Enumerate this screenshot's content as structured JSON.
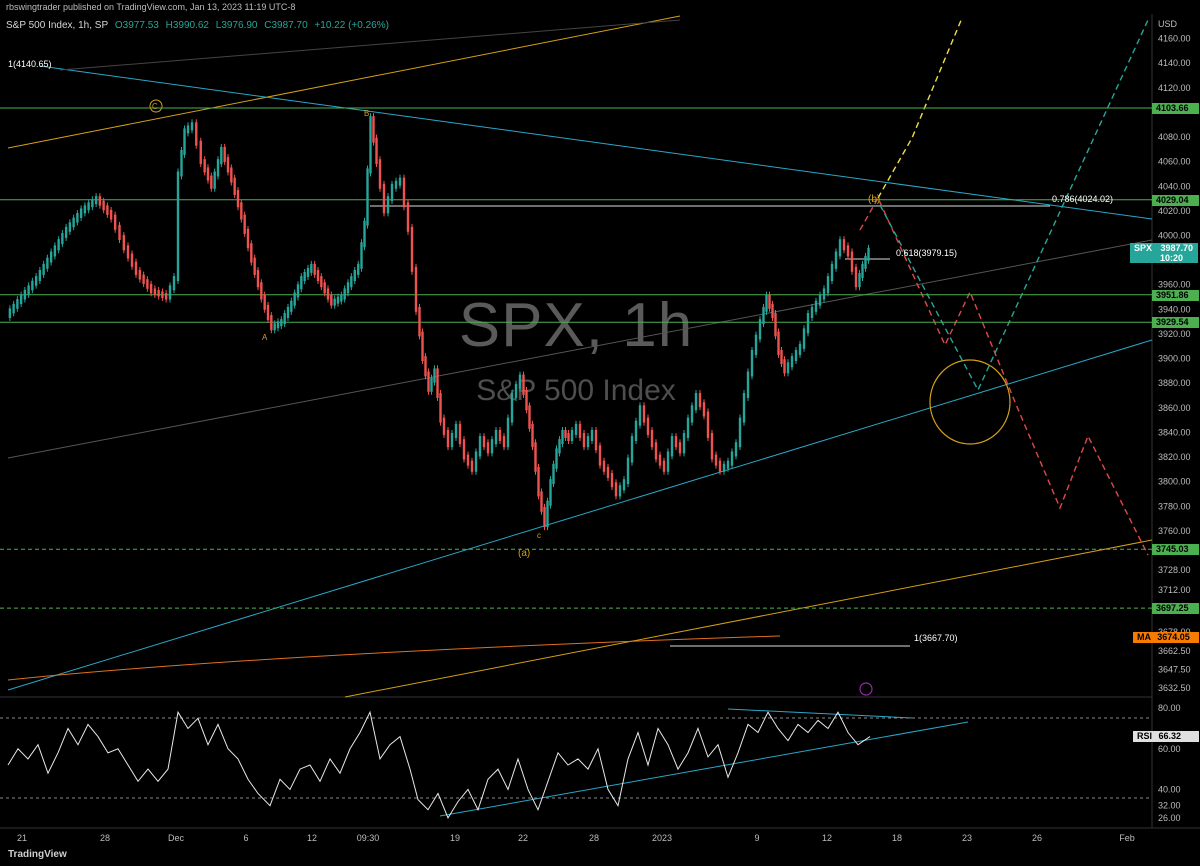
{
  "publisher": "rbswingtrader published on TradingView.com, Jan 13, 2023 11:19 UTC-8",
  "header": {
    "symbol": "S&P 500 Index, 1h, SP",
    "open": "O3977.53",
    "high": "H3990.62",
    "low": "L3976.90",
    "close": "C3987.70",
    "change": "+10.22 (+0.26%)"
  },
  "watermark": {
    "ticker": "SPX, 1h",
    "name": "S&P 500 Index"
  },
  "branding": "TradingView",
  "chart_data": [
    {
      "type": "line",
      "panel": "price",
      "title": "S&P 500 Index, 1h, SP",
      "currency": "USD",
      "ylim": [
        3625,
        4180
      ],
      "y_ticks": [
        "4160.00",
        "4140.00",
        "4120.00",
        "4080.00",
        "4060.00",
        "4040.00",
        "4020.00",
        "4000.00",
        "3960.00",
        "3940.00",
        "3920.00",
        "3900.00",
        "3880.00",
        "3860.00",
        "3840.00",
        "3820.00",
        "3800.00",
        "3780.00",
        "3760.00",
        "3728.00",
        "3712.00",
        "3678.00",
        "3662.50",
        "3647.50",
        "3632.50"
      ],
      "x_ticks": [
        "21",
        "28",
        "Dec",
        "6",
        "12",
        "09:30",
        "19",
        "22",
        "28",
        "2023",
        "9",
        "12",
        "18",
        "23",
        "26",
        "Feb"
      ],
      "price_series": {
        "name": "SPX",
        "points": [
          [
            0,
            3935
          ],
          [
            15,
            3950
          ],
          [
            30,
            3965
          ],
          [
            45,
            3985
          ],
          [
            60,
            4005
          ],
          [
            75,
            4020
          ],
          [
            90,
            4030
          ],
          [
            105,
            4015
          ],
          [
            118,
            3990
          ],
          [
            130,
            3970
          ],
          [
            145,
            3955
          ],
          [
            160,
            3950
          ],
          [
            168,
            3965
          ],
          [
            172,
            4050
          ],
          [
            178,
            4085
          ],
          [
            186,
            4090
          ],
          [
            195,
            4060
          ],
          [
            205,
            4040
          ],
          [
            215,
            4070
          ],
          [
            225,
            4045
          ],
          [
            235,
            4015
          ],
          [
            245,
            3980
          ],
          [
            255,
            3950
          ],
          [
            265,
            3925
          ],
          [
            275,
            3930
          ],
          [
            285,
            3945
          ],
          [
            295,
            3965
          ],
          [
            305,
            3975
          ],
          [
            315,
            3960
          ],
          [
            325,
            3945
          ],
          [
            335,
            3950
          ],
          [
            345,
            3965
          ],
          [
            352,
            3975
          ],
          [
            358,
            4010
          ],
          [
            364,
            4095
          ],
          [
            370,
            4060
          ],
          [
            378,
            4020
          ],
          [
            386,
            4040
          ],
          [
            394,
            4045
          ],
          [
            402,
            4005
          ],
          [
            410,
            3940
          ],
          [
            416,
            3900
          ],
          [
            422,
            3875
          ],
          [
            428,
            3890
          ],
          [
            434,
            3850
          ],
          [
            442,
            3830
          ],
          [
            450,
            3845
          ],
          [
            458,
            3820
          ],
          [
            466,
            3810
          ],
          [
            474,
            3835
          ],
          [
            482,
            3825
          ],
          [
            490,
            3840
          ],
          [
            498,
            3830
          ],
          [
            506,
            3870
          ],
          [
            514,
            3885
          ],
          [
            520,
            3860
          ],
          [
            526,
            3830
          ],
          [
            532,
            3790
          ],
          [
            538,
            3765
          ],
          [
            544,
            3800
          ],
          [
            550,
            3825
          ],
          [
            556,
            3840
          ],
          [
            562,
            3835
          ],
          [
            570,
            3845
          ],
          [
            578,
            3830
          ],
          [
            586,
            3840
          ],
          [
            594,
            3815
          ],
          [
            602,
            3805
          ],
          [
            610,
            3790
          ],
          [
            618,
            3800
          ],
          [
            626,
            3835
          ],
          [
            634,
            3860
          ],
          [
            642,
            3840
          ],
          [
            650,
            3820
          ],
          [
            658,
            3810
          ],
          [
            666,
            3835
          ],
          [
            674,
            3825
          ],
          [
            682,
            3850
          ],
          [
            690,
            3870
          ],
          [
            698,
            3855
          ],
          [
            706,
            3820
          ],
          [
            714,
            3810
          ],
          [
            722,
            3815
          ],
          [
            730,
            3830
          ],
          [
            738,
            3870
          ],
          [
            746,
            3905
          ],
          [
            754,
            3930
          ],
          [
            760,
            3950
          ],
          [
            766,
            3935
          ],
          [
            772,
            3905
          ],
          [
            778,
            3890
          ],
          [
            786,
            3900
          ],
          [
            794,
            3910
          ],
          [
            802,
            3935
          ],
          [
            810,
            3945
          ],
          [
            818,
            3955
          ],
          [
            826,
            3975
          ],
          [
            834,
            3995
          ],
          [
            842,
            3985
          ],
          [
            850,
            3960
          ],
          [
            856,
            3975
          ],
          [
            862,
            3988
          ]
        ]
      },
      "levels": [
        {
          "label": "4103.66",
          "value": 4103.66,
          "color": "#4caf50"
        },
        {
          "label": "4029.04",
          "value": 4029.04,
          "color": "#4caf50"
        },
        {
          "label": "3951.86",
          "value": 3951.86,
          "color": "#4caf50"
        },
        {
          "label": "3929.54",
          "value": 3929.54,
          "color": "#4caf50"
        },
        {
          "label": "3745.03",
          "value": 3745.03,
          "color": "#4caf50",
          "dashed": true
        },
        {
          "label": "3697.25",
          "value": 3697.25,
          "color": "#4caf50",
          "dashed": true
        }
      ],
      "last_price_badge": {
        "symbol": "SPX",
        "value": "3987.70",
        "timer": "10:20",
        "color": "#26a69a"
      },
      "ma_badge": {
        "symbol": "MA",
        "value": "3674.05",
        "color": "#f57c00"
      },
      "fib_labels": [
        {
          "text": "1(4140.65)",
          "value": 4140.65
        },
        {
          "text": "0.786(4024.02)",
          "value": 4024.02
        },
        {
          "text": "0.618(3979.15)",
          "value": 3979.15
        },
        {
          "text": "1(3667.70)",
          "value": 3667.7
        }
      ],
      "wave_labels": [
        "C",
        "B",
        "A",
        "c",
        "(a)",
        "(b)"
      ]
    },
    {
      "type": "line",
      "panel": "oscillator",
      "legend": "RSI",
      "last_value": "66.32",
      "ylim": [
        22,
        84
      ],
      "y_ticks": [
        "80.00",
        "60.00",
        "40.00",
        "32.00",
        "26.00"
      ],
      "series": {
        "name": "RSI",
        "points": [
          [
            0,
            52
          ],
          [
            10,
            60
          ],
          [
            20,
            55
          ],
          [
            30,
            62
          ],
          [
            40,
            48
          ],
          [
            50,
            58
          ],
          [
            60,
            70
          ],
          [
            70,
            62
          ],
          [
            80,
            72
          ],
          [
            90,
            66
          ],
          [
            100,
            58
          ],
          [
            110,
            60
          ],
          [
            120,
            52
          ],
          [
            130,
            44
          ],
          [
            140,
            50
          ],
          [
            150,
            44
          ],
          [
            160,
            50
          ],
          [
            170,
            78
          ],
          [
            180,
            70
          ],
          [
            190,
            75
          ],
          [
            200,
            62
          ],
          [
            210,
            72
          ],
          [
            220,
            60
          ],
          [
            230,
            55
          ],
          [
            240,
            45
          ],
          [
            250,
            38
          ],
          [
            262,
            32
          ],
          [
            272,
            45
          ],
          [
            282,
            40
          ],
          [
            292,
            50
          ],
          [
            302,
            52
          ],
          [
            312,
            44
          ],
          [
            322,
            55
          ],
          [
            332,
            48
          ],
          [
            342,
            60
          ],
          [
            352,
            68
          ],
          [
            362,
            78
          ],
          [
            372,
            55
          ],
          [
            382,
            62
          ],
          [
            392,
            66
          ],
          [
            402,
            50
          ],
          [
            410,
            35
          ],
          [
            420,
            30
          ],
          [
            430,
            38
          ],
          [
            440,
            26
          ],
          [
            450,
            34
          ],
          [
            460,
            40
          ],
          [
            470,
            30
          ],
          [
            480,
            45
          ],
          [
            490,
            50
          ],
          [
            500,
            40
          ],
          [
            510,
            55
          ],
          [
            520,
            40
          ],
          [
            530,
            30
          ],
          [
            540,
            44
          ],
          [
            550,
            58
          ],
          [
            560,
            52
          ],
          [
            570,
            55
          ],
          [
            580,
            50
          ],
          [
            590,
            60
          ],
          [
            600,
            40
          ],
          [
            610,
            32
          ],
          [
            620,
            55
          ],
          [
            630,
            68
          ],
          [
            640,
            52
          ],
          [
            650,
            70
          ],
          [
            660,
            62
          ],
          [
            670,
            50
          ],
          [
            680,
            58
          ],
          [
            690,
            70
          ],
          [
            700,
            56
          ],
          [
            710,
            62
          ],
          [
            720,
            46
          ],
          [
            730,
            58
          ],
          [
            740,
            72
          ],
          [
            750,
            68
          ],
          [
            760,
            78
          ],
          [
            770,
            70
          ],
          [
            780,
            64
          ],
          [
            790,
            72
          ],
          [
            800,
            68
          ],
          [
            810,
            74
          ],
          [
            820,
            70
          ],
          [
            830,
            78
          ],
          [
            840,
            68
          ],
          [
            850,
            62
          ],
          [
            862,
            66
          ]
        ]
      }
    }
  ]
}
